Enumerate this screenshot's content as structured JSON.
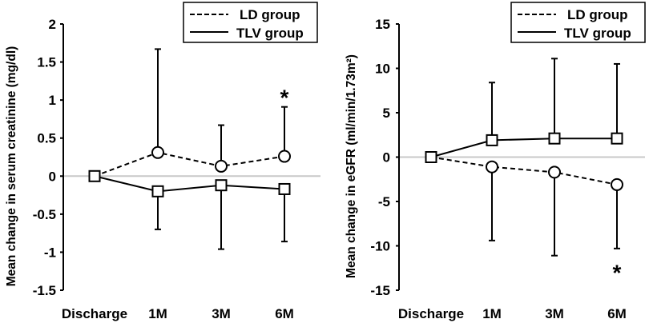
{
  "chart_data": [
    {
      "type": "line",
      "panel": "left",
      "title": "",
      "xlabel": "",
      "ylabel": "Mean change in serum creatinine (mg/dl)",
      "categories": [
        "Discharge",
        "1M",
        "3M",
        "6M"
      ],
      "ylim": [
        -1.5,
        2
      ],
      "yticks": [
        2,
        1.5,
        1,
        0.5,
        0,
        -0.5,
        -1,
        -1.5
      ],
      "ytick_labels": [
        "2",
        "1.5",
        "1",
        "0.5",
        "0",
        "-0.5",
        "-1",
        "-1.5"
      ],
      "reference_line": 0,
      "legend": {
        "position": "top-right",
        "entries": [
          "LD group",
          "TLV group"
        ]
      },
      "series": [
        {
          "name": "LD group",
          "line_style": "dashed",
          "marker": "circle",
          "values": [
            0,
            0.31,
            0.13,
            0.26
          ],
          "error_upper": [
            null,
            1.67,
            0.67,
            0.91
          ],
          "error_lower": [
            null,
            null,
            null,
            null
          ]
        },
        {
          "name": "TLV group",
          "line_style": "solid",
          "marker": "square",
          "values": [
            0,
            -0.2,
            -0.12,
            -0.17
          ],
          "error_upper": [
            null,
            null,
            null,
            null
          ],
          "error_lower": [
            null,
            -0.7,
            -0.96,
            -0.86
          ]
        }
      ],
      "annotations": [
        {
          "text": "*",
          "category": "6M",
          "y": 1.08
        }
      ]
    },
    {
      "type": "line",
      "panel": "right",
      "title": "",
      "xlabel": "",
      "ylabel": "Mean change in eGFR (ml/min/1.73m²)",
      "categories": [
        "Discharge",
        "1M",
        "3M",
        "6M"
      ],
      "ylim": [
        -15,
        15
      ],
      "yticks": [
        15,
        10,
        5,
        0,
        -5,
        -10,
        -15
      ],
      "ytick_labels": [
        "15",
        "10",
        "5",
        "0",
        "-5",
        "-10",
        "-15"
      ],
      "reference_line": 0,
      "legend": {
        "position": "top-right",
        "entries": [
          "LD group",
          "TLV group"
        ]
      },
      "series": [
        {
          "name": "LD group",
          "line_style": "dashed",
          "marker": "circle",
          "values": [
            0,
            -1.1,
            -1.7,
            -3.1
          ],
          "error_upper": [
            null,
            null,
            null,
            null
          ],
          "error_lower": [
            null,
            -9.4,
            -11.1,
            -10.3
          ]
        },
        {
          "name": "TLV group",
          "line_style": "solid",
          "marker": "square",
          "values": [
            0,
            1.9,
            2.1,
            2.1
          ],
          "error_upper": [
            null,
            8.4,
            11.1,
            10.5
          ],
          "error_lower": [
            null,
            null,
            null,
            null
          ]
        }
      ],
      "annotations": [
        {
          "text": "*",
          "category": "6M",
          "y": -12.6
        }
      ]
    }
  ]
}
